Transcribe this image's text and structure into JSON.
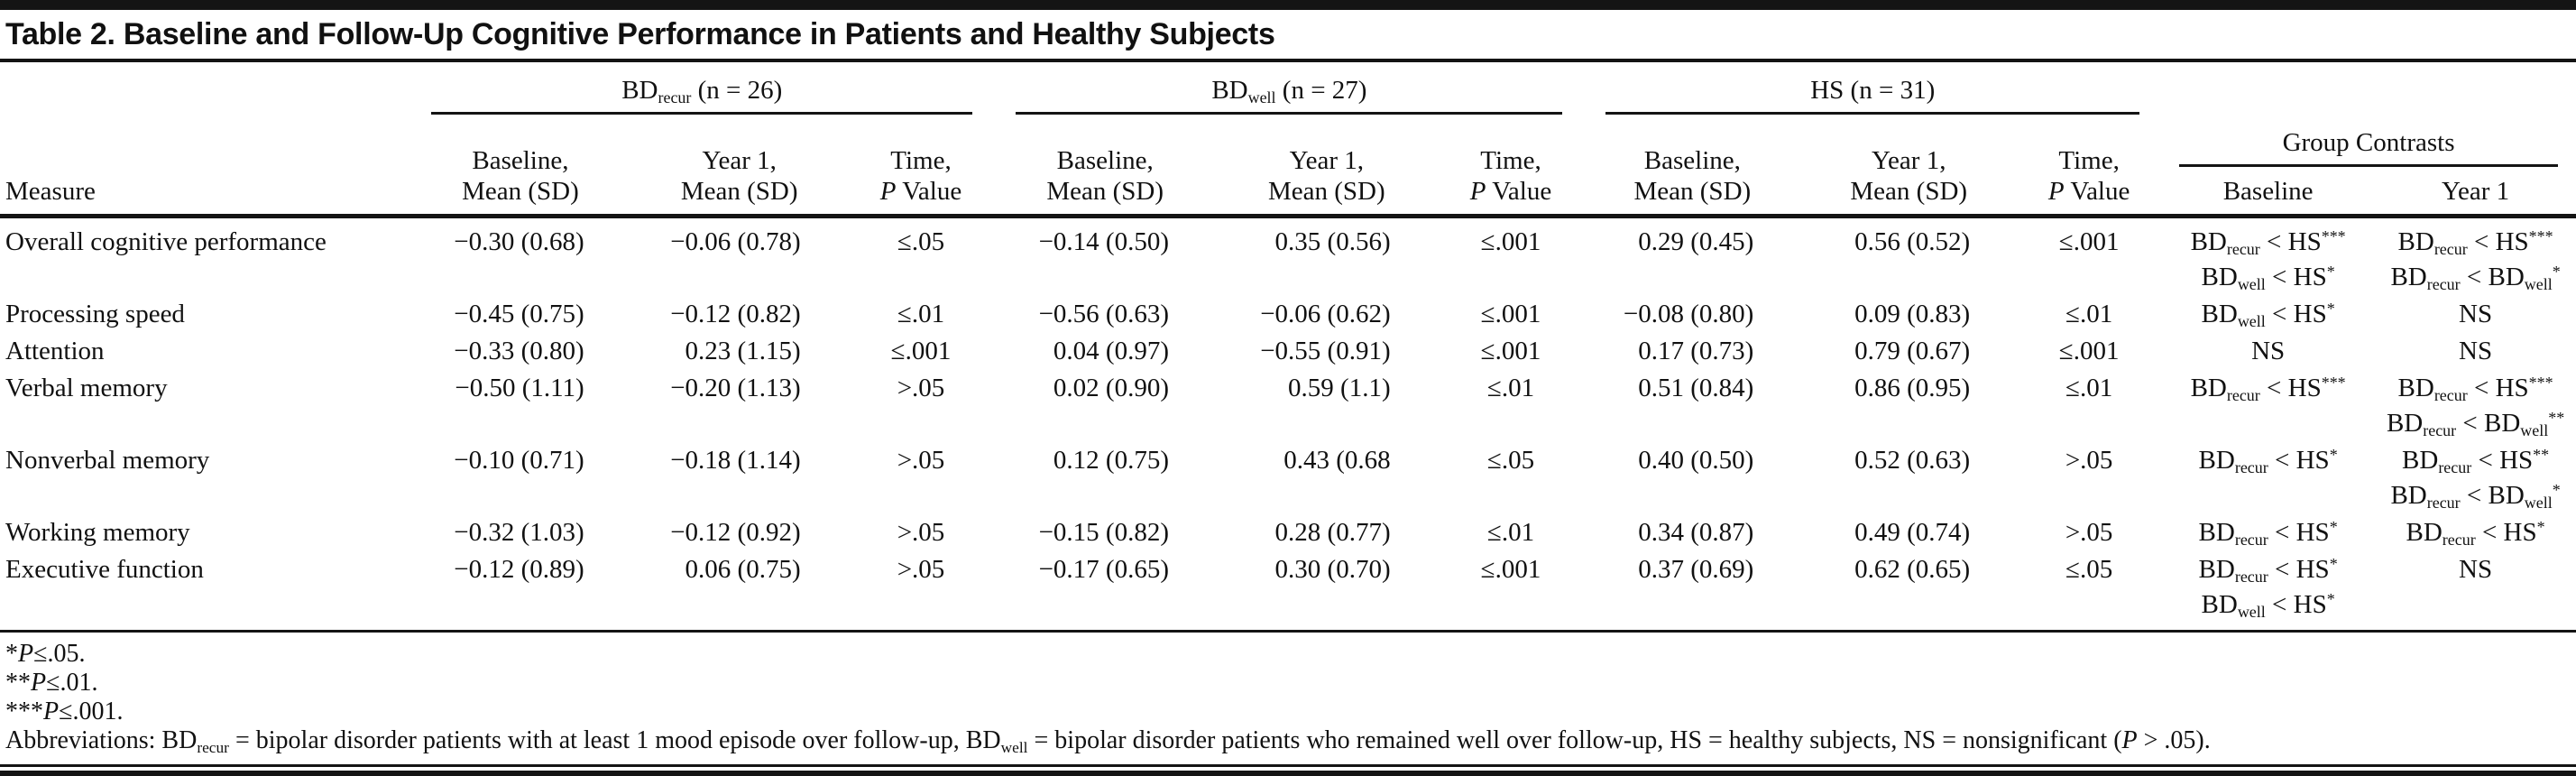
{
  "title": "Table 2. Baseline and Follow-Up Cognitive Performance in Patients and Healthy Subjects",
  "header": {
    "measure_label": "Measure",
    "groups": [
      {
        "label": "BD~recur~ (n = 26)",
        "columns": [
          "Baseline,\nMean (SD)",
          "Year 1,\nMean (SD)",
          "Time,\n«P» Value"
        ]
      },
      {
        "label": "BD~well~ (n = 27)",
        "columns": [
          "Baseline,\nMean (SD)",
          "Year 1,\nMean (SD)",
          "Time,\n«P» Value"
        ]
      },
      {
        "label": "HS (n = 31)",
        "columns": [
          "Baseline,\nMean (SD)",
          "Year 1,\nMean (SD)",
          "Time,\n«P» Value"
        ]
      },
      {
        "label": "Group Contrasts",
        "columns": [
          "Baseline",
          "Year 1"
        ]
      }
    ]
  },
  "rows": [
    {
      "measure": "Overall cognitive performance",
      "bd_recur": {
        "baseline": "−0.30 (0.68)",
        "year1": "−0.06 (0.78)",
        "time_p": "≤.05"
      },
      "bd_well": {
        "baseline": "−0.14 (0.50)",
        "year1": "0.35 (0.56)",
        "time_p": "≤.001"
      },
      "hs": {
        "baseline": "0.29 (0.45)",
        "year1": "0.56 (0.52)",
        "time_p": "≤.001"
      },
      "contrasts_baseline": [
        "BD~recur~ < HS^***^",
        "BD~well~ < HS^*^"
      ],
      "contrasts_year1": [
        "BD~recur~ < HS^***^",
        "BD~recur~ < BD~well~^*^"
      ]
    },
    {
      "measure": "Processing speed",
      "bd_recur": {
        "baseline": "−0.45 (0.75)",
        "year1": "−0.12 (0.82)",
        "time_p": "≤.01"
      },
      "bd_well": {
        "baseline": "−0.56 (0.63)",
        "year1": "−0.06 (0.62)",
        "time_p": "≤.001"
      },
      "hs": {
        "baseline": "−0.08 (0.80)",
        "year1": "0.09 (0.83)",
        "time_p": "≤.01"
      },
      "contrasts_baseline": [
        "BD~well~ < HS^*^"
      ],
      "contrasts_year1": [
        "NS"
      ]
    },
    {
      "measure": "Attention",
      "bd_recur": {
        "baseline": "−0.33 (0.80)",
        "year1": "0.23 (1.15)",
        "time_p": "≤.001"
      },
      "bd_well": {
        "baseline": "0.04 (0.97)",
        "year1": "−0.55 (0.91)",
        "time_p": "≤.001"
      },
      "hs": {
        "baseline": "0.17 (0.73)",
        "year1": "0.79 (0.67)",
        "time_p": "≤.001"
      },
      "contrasts_baseline": [
        "NS"
      ],
      "contrasts_year1": [
        "NS"
      ]
    },
    {
      "measure": "Verbal memory",
      "bd_recur": {
        "baseline": "−0.50 (1.11)",
        "year1": "−0.20 (1.13)",
        "time_p": ">.05"
      },
      "bd_well": {
        "baseline": "0.02 (0.90)",
        "year1": "0.59 (1.1)",
        "time_p": "≤.01"
      },
      "hs": {
        "baseline": "0.51 (0.84)",
        "year1": "0.86 (0.95)",
        "time_p": "≤.01"
      },
      "contrasts_baseline": [
        "BD~recur~ < HS^***^"
      ],
      "contrasts_year1": [
        "BD~recur~ < HS^***^",
        "BD~recur~ < BD~well~^**^"
      ]
    },
    {
      "measure": "Nonverbal memory",
      "bd_recur": {
        "baseline": "−0.10 (0.71)",
        "year1": "−0.18 (1.14)",
        "time_p": ">.05"
      },
      "bd_well": {
        "baseline": "0.12 (0.75)",
        "year1": "0.43 (0.68",
        "time_p": "≤.05"
      },
      "hs": {
        "baseline": "0.40 (0.50)",
        "year1": "0.52 (0.63)",
        "time_p": ">.05"
      },
      "contrasts_baseline": [
        "BD~recur~ < HS^*^"
      ],
      "contrasts_year1": [
        "BD~recur~ < HS^**^",
        "BD~recur~ < BD~well~^*^"
      ]
    },
    {
      "measure": "Working memory",
      "bd_recur": {
        "baseline": "−0.32 (1.03)",
        "year1": "−0.12 (0.92)",
        "time_p": ">.05"
      },
      "bd_well": {
        "baseline": "−0.15 (0.82)",
        "year1": "0.28 (0.77)",
        "time_p": "≤.01"
      },
      "hs": {
        "baseline": "0.34 (0.87)",
        "year1": "0.49 (0.74)",
        "time_p": ">.05"
      },
      "contrasts_baseline": [
        "BD~recur~ < HS^*^"
      ],
      "contrasts_year1": [
        "BD~recur~ < HS^*^"
      ]
    },
    {
      "measure": "Executive function",
      "bd_recur": {
        "baseline": "−0.12 (0.89)",
        "year1": "0.06 (0.75)",
        "time_p": ">.05"
      },
      "bd_well": {
        "baseline": "−0.17 (0.65)",
        "year1": "0.30 (0.70)",
        "time_p": "≤.001"
      },
      "hs": {
        "baseline": "0.37 (0.69)",
        "year1": "0.62 (0.65)",
        "time_p": "≤.05"
      },
      "contrasts_baseline": [
        "BD~recur~ < HS^*^",
        "BD~well~ < HS^*^"
      ],
      "contrasts_year1": [
        "NS"
      ]
    }
  ],
  "footnotes": [
    "*«P»≤.05.",
    "**«P»≤.01.",
    "***«P»≤.001.",
    "Abbreviations: BD~recur~ = bipolar disorder patients with at least 1 mood episode over follow-up, BD~well~ = bipolar disorder patients who remained well over follow-up, HS = healthy subjects, NS = nonsignificant («P» > .05)."
  ]
}
